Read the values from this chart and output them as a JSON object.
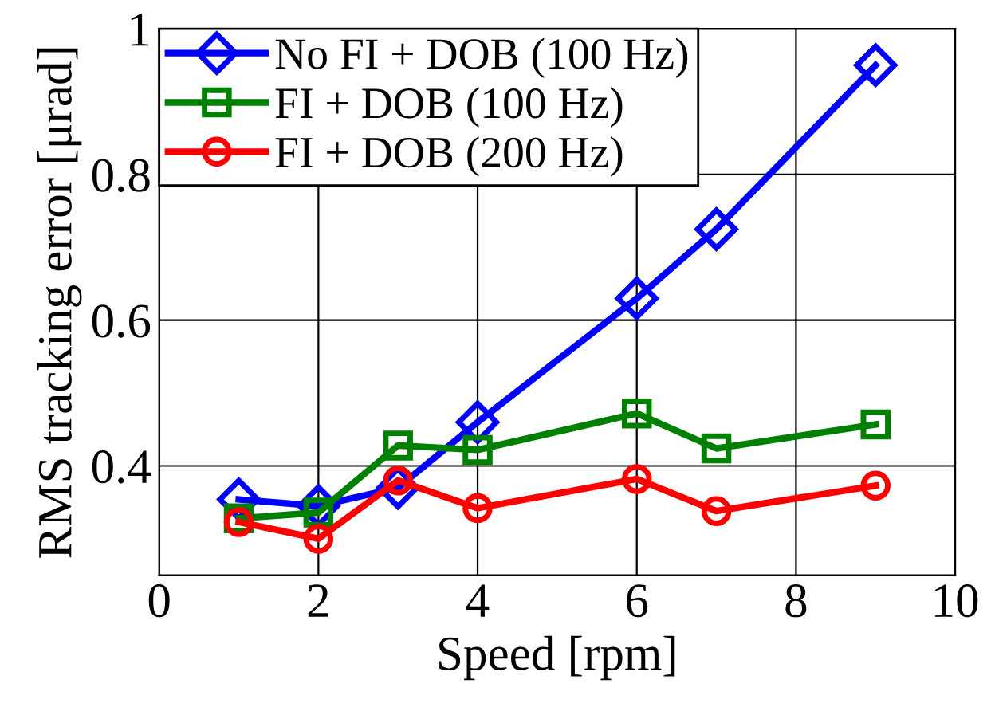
{
  "chart_data": {
    "type": "line",
    "xlabel": "Speed [rpm]",
    "ylabel": "RMS tracking error [μrad]",
    "x": [
      1,
      2,
      3,
      4,
      6,
      7,
      9
    ],
    "series": [
      {
        "name": "No FI + DOB (100 Hz)",
        "color": "#0000ff",
        "marker": "diamond",
        "values": [
          0.354,
          0.345,
          0.37,
          0.46,
          0.63,
          0.725,
          0.95
        ]
      },
      {
        "name": "FI + DOB (100 Hz)",
        "color": "#008000",
        "marker": "square",
        "values": [
          0.328,
          0.336,
          0.428,
          0.422,
          0.472,
          0.424,
          0.457
        ]
      },
      {
        "name": "FI + DOB (200 Hz)",
        "color": "#ff0000",
        "marker": "circle",
        "values": [
          0.323,
          0.3,
          0.38,
          0.342,
          0.382,
          0.338,
          0.373
        ]
      }
    ],
    "xlim": [
      0,
      10
    ],
    "ylim": [
      0.25,
      1
    ],
    "xticks": [
      0,
      2,
      4,
      6,
      8,
      10
    ],
    "yticks": [
      0.4,
      0.6,
      0.8,
      1
    ],
    "grid": true,
    "legend": "top left",
    "line_style": "solid"
  }
}
